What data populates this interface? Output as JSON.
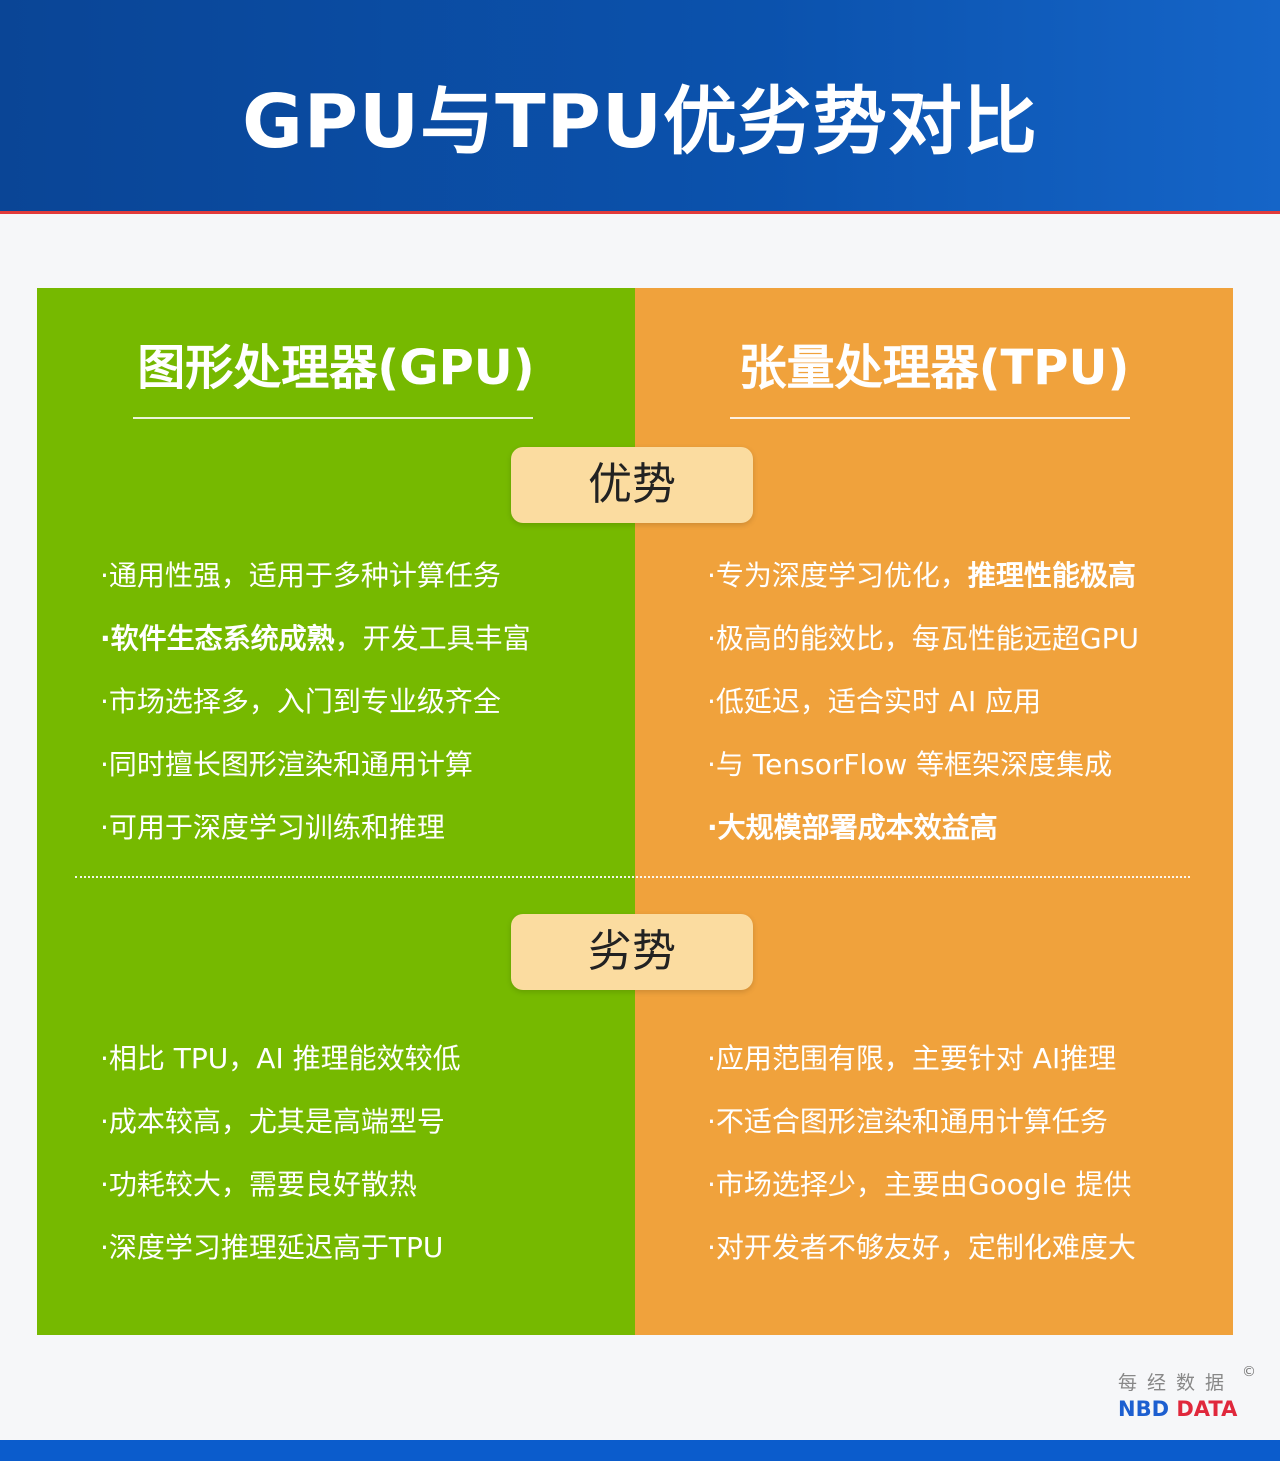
{
  "title": "GPU与TPU优劣势对比",
  "colors": {
    "gpu": "#76b900",
    "tpu": "#f0a23c",
    "header": "#0b52ad",
    "badge": "#fbdca0"
  },
  "gpu": {
    "heading": "图形处理器(GPU)",
    "pros": [
      [
        {
          "t": "·通用性强，适用于多种计算任务",
          "b": false
        }
      ],
      [
        {
          "t": "·软件生态系统成熟",
          "b": true
        },
        {
          "t": "，开发工具丰富",
          "b": false
        }
      ],
      [
        {
          "t": "·市场选择多，入门到专业级齐全",
          "b": false
        }
      ],
      [
        {
          "t": "·同时擅长图形渲染和通用计算",
          "b": false
        }
      ],
      [
        {
          "t": "·可用于深度学习训练和推理",
          "b": false
        }
      ]
    ],
    "cons": [
      [
        {
          "t": "·相比 TPU，AI 推理能效较低",
          "b": false
        }
      ],
      [
        {
          "t": "·成本较高，尤其是高端型号",
          "b": false
        }
      ],
      [
        {
          "t": "·功耗较大，需要良好散热",
          "b": false
        }
      ],
      [
        {
          "t": "·深度学习推理延迟高于TPU",
          "b": false
        }
      ]
    ]
  },
  "tpu": {
    "heading": "张量处理器(TPU)",
    "pros": [
      [
        {
          "t": "·专为深度学习优化，",
          "b": false
        },
        {
          "t": "推理性能极高",
          "b": true
        }
      ],
      [
        {
          "t": "·极高的能效比，每瓦性能远超GPU",
          "b": false
        }
      ],
      [
        {
          "t": "·低延迟，适合实时 AI 应用",
          "b": false
        }
      ],
      [
        {
          "t": "·与 TensorFlow 等框架深度集成",
          "b": false
        }
      ],
      [
        {
          "t": "·大规模部署成本效益高",
          "b": true
        }
      ]
    ],
    "cons": [
      [
        {
          "t": "·应用范围有限，主要针对 AI推理",
          "b": false
        }
      ],
      [
        {
          "t": "·不适合图形渲染和通用计算任务",
          "b": false
        }
      ],
      [
        {
          "t": "·市场选择少，主要由Google 提供",
          "b": false
        }
      ],
      [
        {
          "t": "·对开发者不够友好，定制化难度大",
          "b": false
        }
      ]
    ]
  },
  "badges": {
    "pros": "优势",
    "cons": "劣势"
  },
  "logo": {
    "cn": "每经数据",
    "en_1": "NBD",
    "en_2": "DATA",
    "copyright": "©"
  }
}
